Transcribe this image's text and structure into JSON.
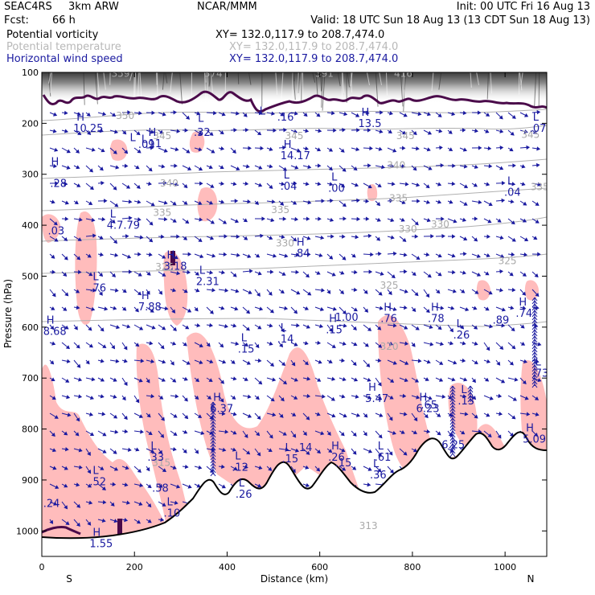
{
  "header": {
    "model": "SEAC4RS",
    "resolution": "3km ARW",
    "center": "NCAR/MMM",
    "init": "Init: 00 UTC Fri 16 Aug 13",
    "fcst_label": "Fcst:",
    "fcst_value": "66 h",
    "valid": "Valid: 18 UTC Sun 18 Aug 13 (13 CDT Sun 18 Aug 13)",
    "fields": [
      {
        "name": "Potential vorticity",
        "range": "XY= 132.0,117.9 to 208.7,474.0",
        "name_color": "#000000",
        "range_color": "#000000"
      },
      {
        "name": "Potential temperature",
        "range": "XY= 132.0,117.9 to 208.7,474.0",
        "name_color": "#b8b8b8",
        "range_color": "#b8b8b8"
      },
      {
        "name": "Horizontal wind speed",
        "range": "XY= 132.0,117.9 to 208.7,474.0",
        "name_color": "#1a1aa0",
        "range_color": "#1a1aa0"
      }
    ]
  },
  "chart_data": {
    "type": "heatmap",
    "title": "",
    "xlabel": "Distance (km)",
    "ylabel": "Pressure (hPa)",
    "xlim": [
      0,
      1090
    ],
    "ylim": [
      1050,
      100
    ],
    "x_ticks": [
      "0",
      "200",
      "400",
      "600",
      "800",
      "1000"
    ],
    "x_tick_values": [
      0,
      200,
      400,
      600,
      800,
      1000
    ],
    "y_ticks": [
      "100",
      "200",
      "300",
      "400",
      "500",
      "600",
      "700",
      "800",
      "900",
      "1000"
    ],
    "y_tick_values": [
      100,
      200,
      300,
      400,
      500,
      600,
      700,
      800,
      900,
      1000
    ],
    "x_endpoints": {
      "left": "S",
      "right": "N"
    },
    "colors": {
      "pv_fill": "#ffbcbc",
      "pv_contour": "#4a0a4a",
      "theta": "#b0b0b0",
      "wind": "#1a1aa0",
      "terrain": "#000000"
    },
    "theta_contour_labels": [
      {
        "x": 170,
        "p": 102,
        "label": "359"
      },
      {
        "x": 370,
        "p": 102,
        "label": "374"
      },
      {
        "x": 610,
        "p": 102,
        "label": "391"
      },
      {
        "x": 780,
        "p": 102,
        "label": "416"
      },
      {
        "x": 180,
        "p": 185,
        "label": "350"
      },
      {
        "x": 260,
        "p": 225,
        "label": "345"
      },
      {
        "x": 545,
        "p": 225,
        "label": "345"
      },
      {
        "x": 785,
        "p": 225,
        "label": "345"
      },
      {
        "x": 1055,
        "p": 222,
        "label": "345"
      },
      {
        "x": 765,
        "p": 282,
        "label": "340"
      },
      {
        "x": 275,
        "p": 318,
        "label": "340"
      },
      {
        "x": 770,
        "p": 347,
        "label": "335"
      },
      {
        "x": 260,
        "p": 375,
        "label": "335"
      },
      {
        "x": 515,
        "p": 370,
        "label": "335"
      },
      {
        "x": 1075,
        "p": 325,
        "label": "335"
      },
      {
        "x": 790,
        "p": 408,
        "label": "330"
      },
      {
        "x": 860,
        "p": 398,
        "label": "330"
      },
      {
        "x": 525,
        "p": 435,
        "label": "330"
      },
      {
        "x": 265,
        "p": 482,
        "label": "325"
      },
      {
        "x": 1005,
        "p": 470,
        "label": "325"
      },
      {
        "x": 750,
        "p": 518,
        "label": "325"
      },
      {
        "x": 750,
        "p": 638,
        "label": "320"
      },
      {
        "x": 258,
        "p": 866,
        "label": "315"
      },
      {
        "x": 705,
        "p": 990,
        "label": "313"
      }
    ],
    "pv_extrema": [
      {
        "x": 75,
        "p": 195,
        "type": "H",
        "value": "10.25"
      },
      {
        "x": 190,
        "p": 235,
        "type": "L",
        "value": ""
      },
      {
        "x": 230,
        "p": 225,
        "type": "H",
        "value": ".11"
      },
      {
        "x": 215,
        "p": 238,
        "type": "L",
        "value": ""
      },
      {
        "x": 215,
        "p": 248,
        "type": "",
        "value": ".09"
      },
      {
        "x": 337,
        "p": 197,
        "type": "L",
        "value": ""
      },
      {
        "x": 335,
        "p": 225,
        "type": "",
        "value": ".32"
      },
      {
        "x": 470,
        "p": 183,
        "type": "L",
        "value": ""
      },
      {
        "x": 515,
        "p": 195,
        "type": "",
        "value": ".16"
      },
      {
        "x": 522,
        "p": 248,
        "type": "H",
        "value": "14.17"
      },
      {
        "x": 690,
        "p": 185,
        "type": "H",
        "value": "13.5"
      },
      {
        "x": 1060,
        "p": 195,
        "type": "L",
        "value": ".07"
      },
      {
        "x": 20,
        "p": 282,
        "type": "H",
        "value": ""
      },
      {
        "x": 25,
        "p": 325,
        "type": "",
        "value": ".28"
      },
      {
        "x": 522,
        "p": 308,
        "type": "L",
        "value": ".04"
      },
      {
        "x": 625,
        "p": 312,
        "type": "L",
        "value": ".00"
      },
      {
        "x": 1005,
        "p": 320,
        "type": "L",
        "value": ".04"
      },
      {
        "x": 147,
        "p": 385,
        "type": "L",
        "value": "4.7.79"
      },
      {
        "x": 20,
        "p": 418,
        "type": "",
        "value": ".03"
      },
      {
        "x": 550,
        "p": 440,
        "type": "H",
        "value": ".84"
      },
      {
        "x": 270,
        "p": 465,
        "type": "H",
        "value": "3.18"
      },
      {
        "x": 340,
        "p": 495,
        "type": "L",
        "value": "2.31"
      },
      {
        "x": 110,
        "p": 508,
        "type": "L",
        "value": ".76"
      },
      {
        "x": 215,
        "p": 545,
        "type": "H",
        "value": "7.88"
      },
      {
        "x": 10,
        "p": 593,
        "type": "H",
        "value": "8.68"
      },
      {
        "x": 430,
        "p": 628,
        "type": "L",
        "value": ".15"
      },
      {
        "x": 515,
        "p": 608,
        "type": "L",
        "value": ".14"
      },
      {
        "x": 620,
        "p": 590,
        "type": "H",
        "value": ".15"
      },
      {
        "x": 640,
        "p": 588,
        "type": "",
        "value": "1.00"
      },
      {
        "x": 738,
        "p": 568,
        "type": "H",
        "value": ".76"
      },
      {
        "x": 840,
        "p": 568,
        "type": "H",
        "value": ".78"
      },
      {
        "x": 895,
        "p": 600,
        "type": "L",
        "value": ".26"
      },
      {
        "x": 980,
        "p": 593,
        "type": "",
        "value": ".89"
      },
      {
        "x": 1030,
        "p": 558,
        "type": "H",
        "value": ".74"
      },
      {
        "x": 1065,
        "p": 675,
        "type": "L",
        "value": ".73"
      },
      {
        "x": 370,
        "p": 745,
        "type": "H",
        "value": "6.37"
      },
      {
        "x": 705,
        "p": 725,
        "type": "H",
        "value": "5.47"
      },
      {
        "x": 815,
        "p": 745,
        "type": "H",
        "value": "6.23"
      },
      {
        "x": 825,
        "p": 760,
        "type": "",
        "value": ".65"
      },
      {
        "x": 905,
        "p": 730,
        "type": "L",
        "value": ".13"
      },
      {
        "x": 1045,
        "p": 805,
        "type": "H",
        "value": "5.09"
      },
      {
        "x": 235,
        "p": 840,
        "type": "L",
        "value": ".33"
      },
      {
        "x": 417,
        "p": 860,
        "type": "L",
        "value": ".12"
      },
      {
        "x": 525,
        "p": 843,
        "type": "L",
        "value": ".15"
      },
      {
        "x": 555,
        "p": 843,
        "type": "",
        "value": ".14"
      },
      {
        "x": 625,
        "p": 840,
        "type": "H",
        "value": ".26"
      },
      {
        "x": 725,
        "p": 840,
        "type": "L",
        "value": ".61"
      },
      {
        "x": 870,
        "p": 838,
        "type": "",
        "value": "6.25"
      },
      {
        "x": 110,
        "p": 888,
        "type": "L",
        "value": ".52"
      },
      {
        "x": 425,
        "p": 913,
        "type": "L",
        "value": ".26"
      },
      {
        "x": 245,
        "p": 923,
        "type": "",
        "value": ".58"
      },
      {
        "x": 270,
        "p": 950,
        "type": "L",
        "value": ".10"
      },
      {
        "x": 640,
        "p": 873,
        "type": "",
        "value": ".15"
      },
      {
        "x": 715,
        "p": 875,
        "type": "L",
        "value": ".36"
      },
      {
        "x": 10,
        "p": 953,
        "type": "",
        "value": ".24"
      },
      {
        "x": 110,
        "p": 1010,
        "type": "H",
        "value": "1.55"
      }
    ]
  }
}
